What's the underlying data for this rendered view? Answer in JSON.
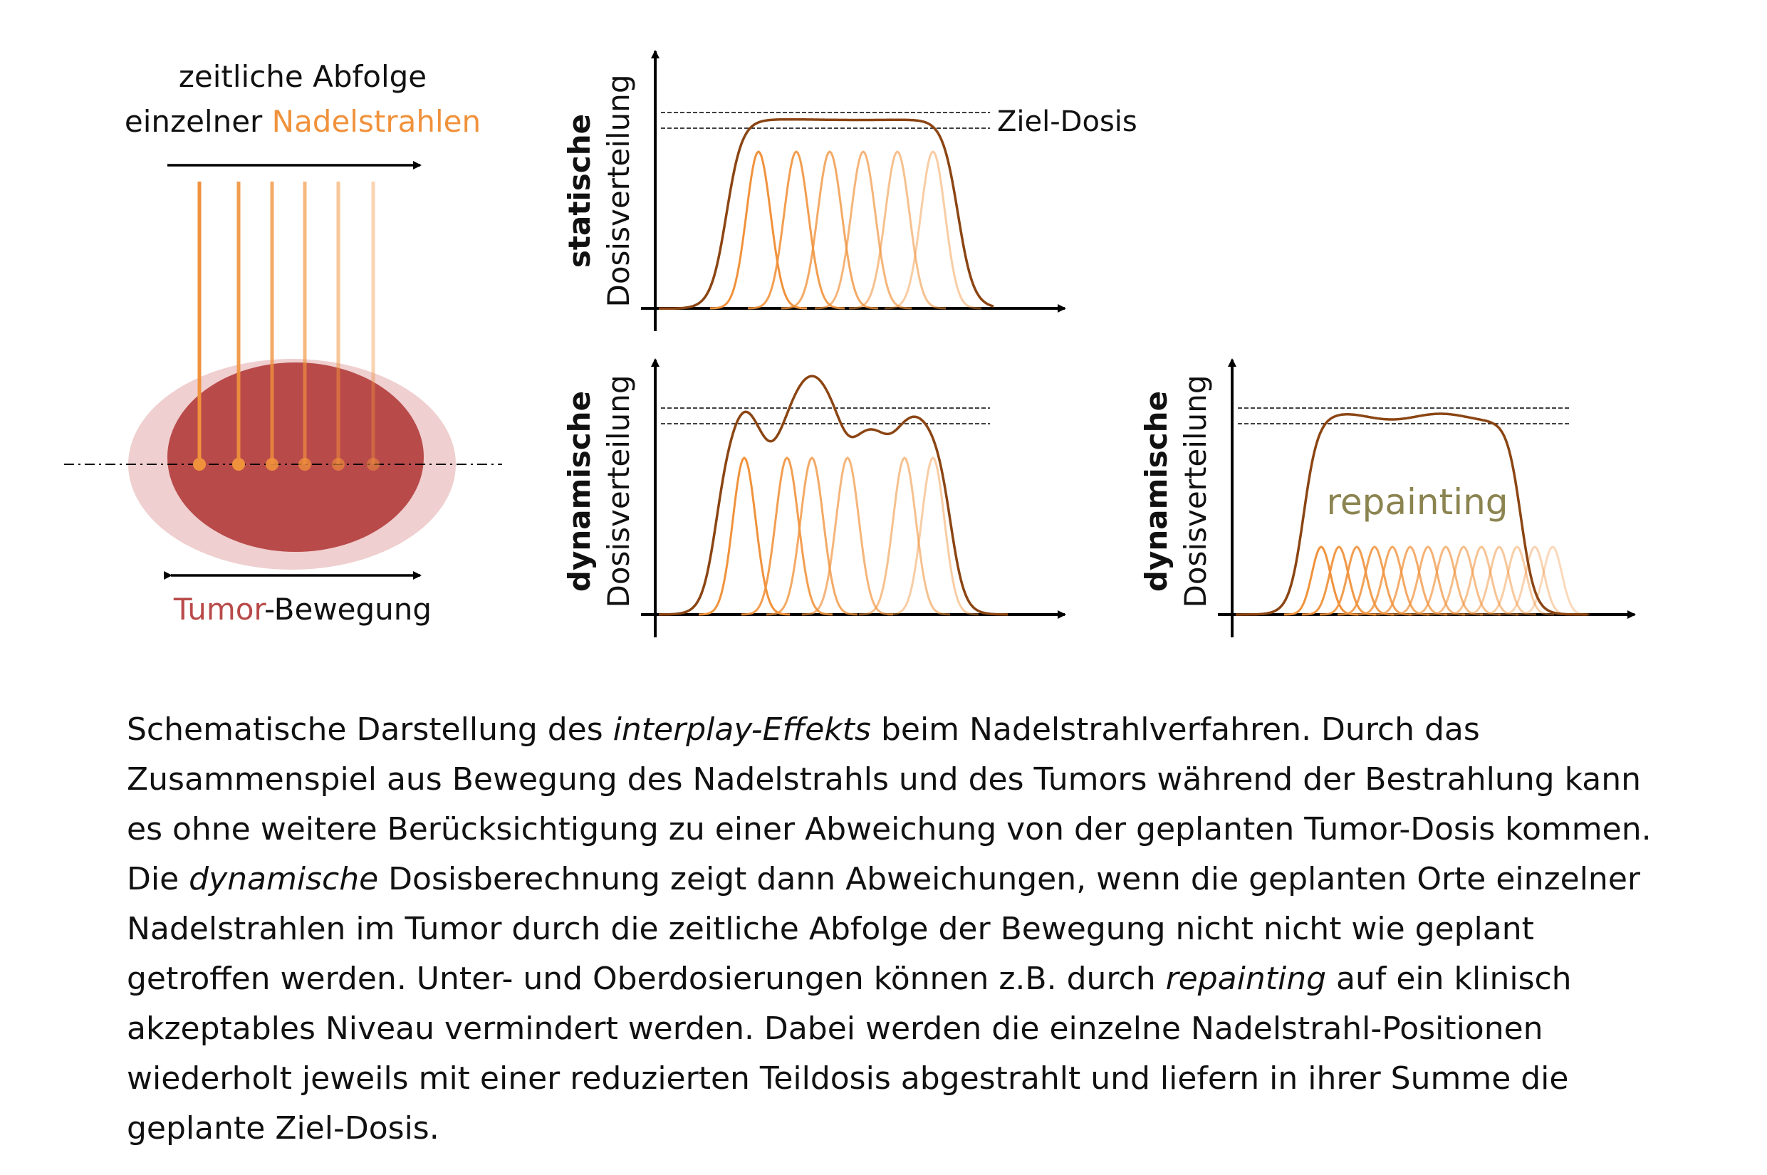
{
  "colors": {
    "beam": "#F0923C",
    "sum_curve": "#8B4513",
    "tumor_dark": "#B94A4A",
    "tumor_light": "#EFCFCF",
    "tumor_text": "#B94A4A",
    "repainting_text": "#8B8450",
    "axis": "#000000"
  },
  "left": {
    "title_line1": "zeitliche Abfolge",
    "title_line2_prefix": "einzelner ",
    "title_line2_highlight": "Nadelstrahlen",
    "motion_label_highlight": "Tumor",
    "motion_label_suffix": "-Bewegung",
    "beam_count": 6
  },
  "panels": [
    {
      "id": "static",
      "ylabel_bold": "statische",
      "ylabel": "Dosisverteilung",
      "annotation": "Ziel-Dosis",
      "profile": "flat"
    },
    {
      "id": "dynamic",
      "ylabel_bold": "dynamische",
      "ylabel": "Dosisverteilung",
      "profile": "bumpy"
    },
    {
      "id": "repainting",
      "ylabel_bold": "dynamische",
      "ylabel": "Dosisverteilung",
      "annotation": "repainting",
      "profile": "repaint"
    }
  ],
  "caption": {
    "s1": "Schematische Darstellung des ",
    "s2_italic": "interplay-Effekts",
    "s3": " beim Nadelstrahlverfahren. Durch das Zusammenspiel aus Bewegung des Nadelstrahls und des Tumors während der Bestrahlung kann es ohne weitere Berücksichtigung zu einer Abweichung von der geplanten Tumor-Dosis kommen. Die ",
    "s4_italic": "dynamische",
    "s5": " Dosisberechnung zeigt dann Abweichungen, wenn die geplanten Orte einzelner Nadelstrahlen im Tumor durch die zeitliche Abfolge der Bewegung nicht nicht wie geplant getroffen werden. Unter- und Oberdosierungen können z.B. durch ",
    "s6_italic": "repainting",
    "s7": " auf ein klinisch akzeptables Niveau vermindert werden. Dabei werden die einzelne Nadelstrahl-Positionen wiederholt jeweils mit einer reduzierten Teildosis abgestrahlt und liefern in ihrer Summe die geplante Ziel-Dosis."
  }
}
